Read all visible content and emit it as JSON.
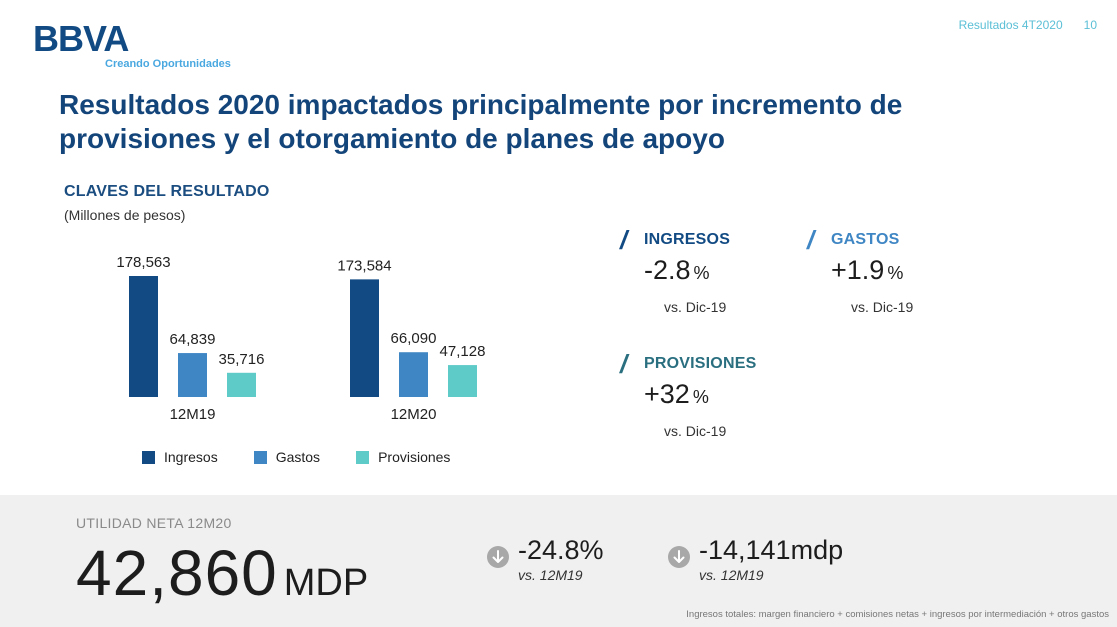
{
  "header": {
    "logo_text": "BBVA",
    "tagline": "Creando Oportunidades",
    "report": "Resultados 4T2020",
    "page_number": "10"
  },
  "title": "Resultados 2020 impactados principalmente por incremento de provisiones y el otorgamiento de planes de apoyo",
  "section": {
    "title": "CLAVES DEL RESULTADO",
    "subtitle": "(Millones de pesos)"
  },
  "colors": {
    "ingresos": "#124b83",
    "gastos": "#3f86c4",
    "provisiones": "#5fcbc9",
    "title": "#14457a"
  },
  "chart_data": {
    "type": "bar",
    "title": "CLAVES DEL RESULTADO",
    "ylabel": "(Millones de pesos)",
    "categories": [
      "12M19",
      "12M20"
    ],
    "series": [
      {
        "name": "Ingresos",
        "values": [
          178563,
          173584
        ],
        "labels": [
          "178,563",
          "173,584"
        ]
      },
      {
        "name": "Gastos",
        "values": [
          64839,
          66090
        ],
        "labels": [
          "64,839",
          "66,090"
        ]
      },
      {
        "name": "Provisiones",
        "values": [
          35716,
          47128
        ],
        "labels": [
          "35,716",
          "47,128"
        ]
      }
    ],
    "legend": [
      "Ingresos",
      "Gastos",
      "Provisiones"
    ],
    "legend_position": "bottom",
    "grid": false
  },
  "kpis": [
    {
      "label": "INGRESOS",
      "value": "-2.8",
      "unit": "%",
      "vs": "vs. Dic-19",
      "color": "#124b83"
    },
    {
      "label": "GASTOS",
      "value": "+1.9",
      "unit": "%",
      "vs": "vs. Dic-19",
      "color": "#3f86c4"
    },
    {
      "label": "PROVISIONES",
      "value": "+32",
      "unit": "%",
      "vs": "vs. Dic-19",
      "color": "#2a6f80"
    }
  ],
  "net_income": {
    "label": "UTILIDAD NETA 12M20",
    "value": "42,860",
    "unit": "MDP",
    "deltas": [
      {
        "value": "-24.8%",
        "vs": "vs. 12M19",
        "icon": "arrow-down-icon"
      },
      {
        "value": "-14,141mdp",
        "vs": "vs. 12M19",
        "icon": "arrow-down-icon"
      }
    ]
  },
  "footnote": "Ingresos totales: margen financiero + comisiones netas + ingresos por intermediación + otros gastos"
}
